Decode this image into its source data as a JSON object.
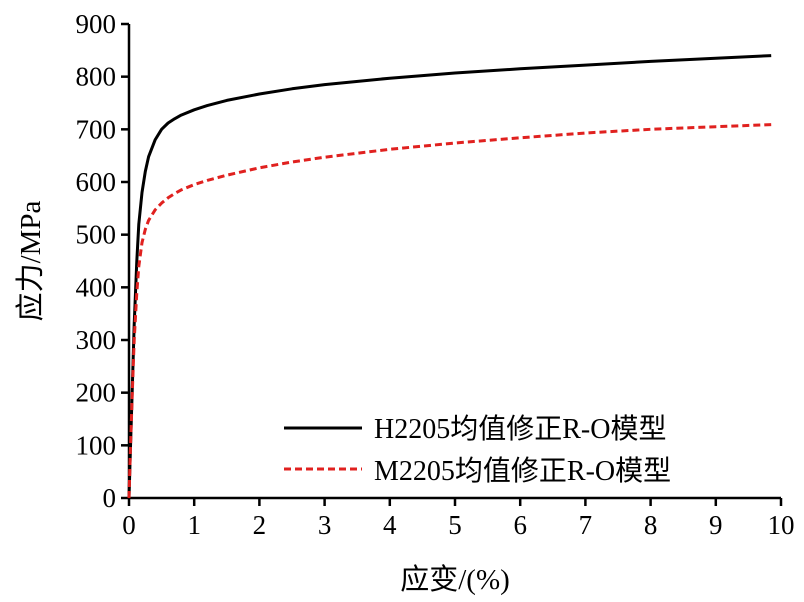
{
  "chart_data": {
    "type": "line",
    "title": "",
    "xlabel": "应变/(%)",
    "ylabel": "应力/MPa",
    "xlim": [
      0,
      10
    ],
    "ylim": [
      0,
      900
    ],
    "xticks": [
      0,
      1,
      2,
      3,
      4,
      5,
      6,
      7,
      8,
      9,
      10
    ],
    "yticks": [
      0,
      100,
      200,
      300,
      400,
      500,
      600,
      700,
      800,
      900
    ],
    "grid": false,
    "legend_position": "bottom-right",
    "series": [
      {
        "name": "H2205均值修正R-O模型",
        "color": "#000000",
        "line_style": "solid",
        "x": [
          0,
          0.02,
          0.05,
          0.08,
          0.12,
          0.15,
          0.2,
          0.25,
          0.3,
          0.4,
          0.5,
          0.6,
          0.7,
          0.8,
          1.0,
          1.2,
          1.5,
          2.0,
          2.5,
          3.0,
          4.0,
          5.0,
          6.0,
          7.0,
          8.0,
          9.0,
          9.85
        ],
        "y": [
          0,
          85,
          210,
          330,
          450,
          520,
          580,
          620,
          648,
          680,
          700,
          712,
          720,
          727,
          737,
          745,
          755,
          767,
          777,
          785,
          797,
          807,
          815,
          822,
          829,
          835,
          840
        ]
      },
      {
        "name": "M2205均值修正R-O模型",
        "color": "#e0211f",
        "line_style": "dashed",
        "x": [
          0,
          0.02,
          0.05,
          0.08,
          0.12,
          0.15,
          0.2,
          0.25,
          0.3,
          0.4,
          0.5,
          0.6,
          0.7,
          0.8,
          1.0,
          1.2,
          1.5,
          2.0,
          2.5,
          3.0,
          4.0,
          5.0,
          6.0,
          7.0,
          8.0,
          9.0,
          9.85
        ],
        "y": [
          0,
          85,
          200,
          300,
          390,
          440,
          485,
          510,
          527,
          547,
          560,
          570,
          578,
          585,
          595,
          603,
          613,
          627,
          638,
          647,
          662,
          674,
          684,
          693,
          700,
          705,
          709
        ]
      }
    ]
  }
}
